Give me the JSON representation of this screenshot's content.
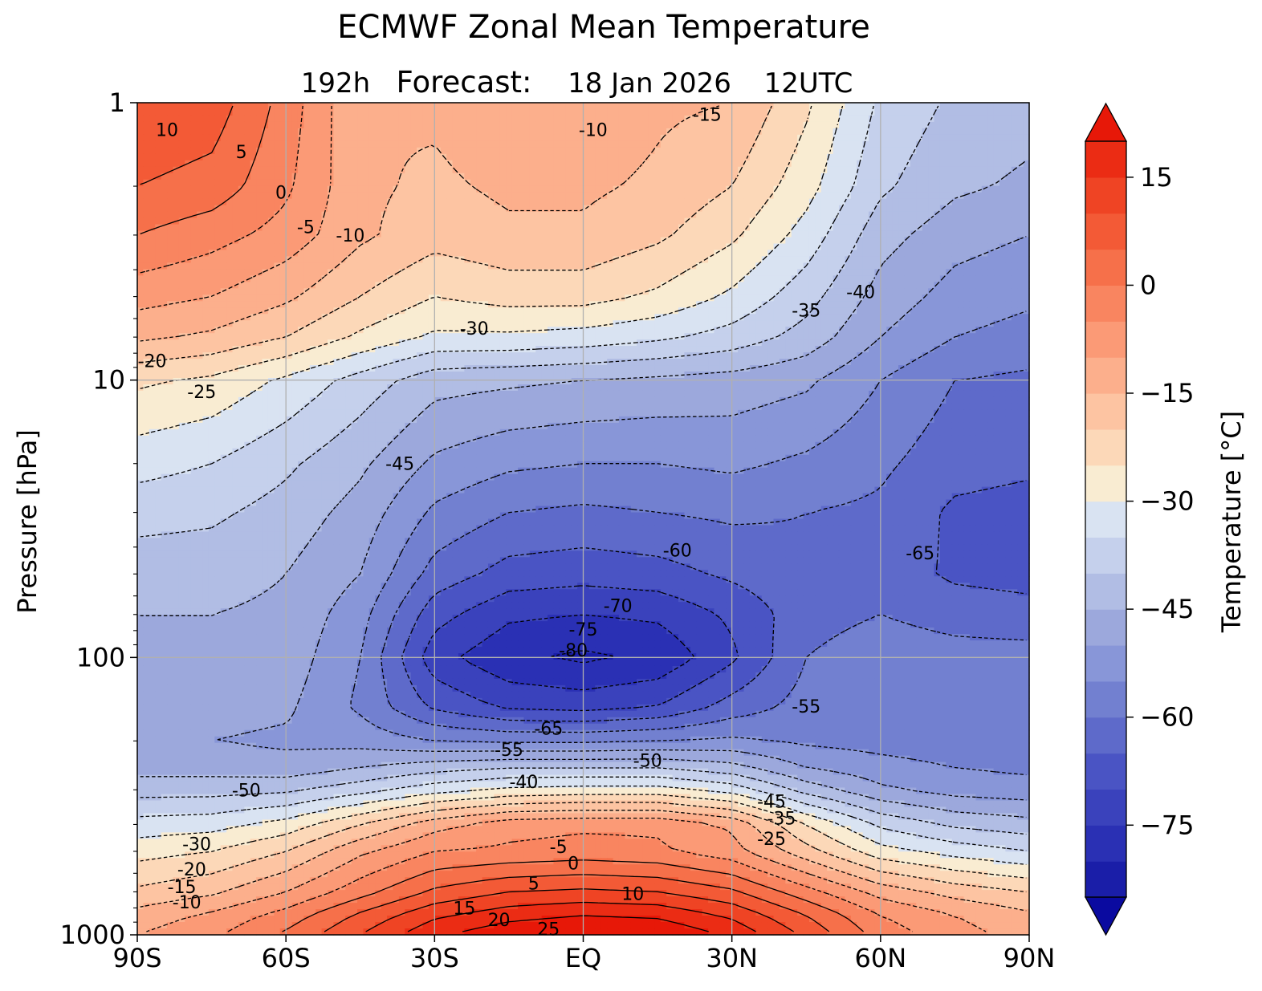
{
  "chart_data": {
    "type": "contour",
    "title": "ECMWF Zonal Mean Temperature",
    "subtitle": {
      "lead": "192h",
      "label": "Forecast:",
      "date": "18 Jan 2026",
      "time": "12UTC"
    },
    "x": {
      "label": "",
      "range": [
        -90,
        90
      ],
      "ticks": [
        -90,
        -60,
        -30,
        0,
        30,
        60,
        90
      ],
      "tick_labels": [
        "90S",
        "60S",
        "30S",
        "EQ",
        "30N",
        "60N",
        "90N"
      ],
      "grid": true
    },
    "y": {
      "label": "Pressure [hPa]",
      "scale": "log",
      "inverted": true,
      "range": [
        1000,
        1
      ],
      "ticks": [
        1,
        10,
        100,
        1000
      ],
      "tick_labels": [
        "1",
        "10",
        "100",
        "1000"
      ],
      "grid": true
    },
    "colorbar": {
      "label": "Temperature [°C]",
      "min": -85,
      "max": 20,
      "step": 5,
      "extend": "both",
      "ticks": [
        15,
        0,
        -15,
        -30,
        -45,
        -60,
        -75
      ],
      "tick_labels": [
        "15",
        "0",
        "−15",
        "−30",
        "−45",
        "−60",
        "−75"
      ],
      "colors": [
        "#0a0aa0",
        "#1a1ea8",
        "#2a30b4",
        "#3a42bc",
        "#4a54c4",
        "#5e6aca",
        "#7280d0",
        "#8896d8",
        "#9ca8dc",
        "#b1bde4",
        "#c5d0ec",
        "#d9e3f2",
        "#f9ecd2",
        "#fcd8b8",
        "#fdc4a2",
        "#fcaf8c",
        "#fb9a76",
        "#f98560",
        "#f6704a",
        "#f35a36",
        "#ef4424",
        "#eb2c14",
        "#e71808"
      ]
    },
    "field_grid": {
      "lat": [
        -90,
        -75,
        -60,
        -45,
        -30,
        -15,
        0,
        15,
        30,
        45,
        60,
        75,
        90
      ],
      "pressure": [
        1,
        2,
        3,
        5,
        7,
        10,
        20,
        30,
        50,
        70,
        100,
        150,
        200,
        250,
        300,
        400,
        500,
        700,
        850,
        1000
      ],
      "temperature": [
        [
          10,
          8,
          -2,
          -15,
          -14,
          -11,
          -11,
          -14,
          -15,
          -24,
          -36,
          -41,
          -43
        ],
        [
          5,
          3,
          -4,
          -14,
          -16,
          -14,
          -14,
          -16,
          -20,
          -28,
          -39,
          -44,
          -46
        ],
        [
          0,
          -3,
          -7,
          -14,
          -18,
          -16,
          -16,
          -19,
          -24,
          -32,
          -43,
          -48,
          -50
        ],
        [
          -8,
          -10,
          -14,
          -20,
          -25,
          -23,
          -23,
          -26,
          -31,
          -38,
          -47,
          -52,
          -54
        ],
        [
          -14,
          -16,
          -20,
          -26,
          -31,
          -31,
          -32,
          -34,
          -37,
          -42,
          -50,
          -55,
          -57
        ],
        [
          -24,
          -26,
          -31,
          -37,
          -43,
          -44,
          -45,
          -46,
          -47,
          -49,
          -55,
          -60,
          -61
        ],
        [
          -33,
          -35,
          -39,
          -44,
          -51,
          -54,
          -55,
          -55,
          -54,
          -56,
          -59,
          -63,
          -64
        ],
        [
          -38,
          -39,
          -42,
          -47,
          -56,
          -60,
          -61,
          -60,
          -59,
          -60,
          -61,
          -66,
          -67
        ],
        [
          -43,
          -43,
          -45,
          -50,
          -62,
          -67,
          -68,
          -67,
          -64,
          -61,
          -62,
          -66,
          -67
        ],
        [
          -45,
          -45,
          -46,
          -53,
          -68,
          -74,
          -75,
          -74,
          -69,
          -62,
          -60,
          -62,
          -63
        ],
        [
          -46,
          -46,
          -47,
          -55,
          -73,
          -79,
          -81,
          -79,
          -71,
          -60,
          -57,
          -58,
          -58
        ],
        [
          -48,
          -48,
          -49,
          -56,
          -66,
          -71,
          -72,
          -70,
          -63,
          -58,
          -56,
          -57,
          -57
        ],
        [
          -50,
          -50,
          -51,
          -52,
          -55,
          -56,
          -56,
          -55,
          -54,
          -56,
          -57,
          -58,
          -58
        ],
        [
          -47,
          -47,
          -48,
          -45,
          -42,
          -40,
          -40,
          -40,
          -43,
          -50,
          -53,
          -55,
          -56
        ],
        [
          -42,
          -42,
          -41,
          -37,
          -32,
          -29,
          -28,
          -28,
          -32,
          -42,
          -49,
          -52,
          -53
        ],
        [
          -33,
          -32,
          -28,
          -20,
          -12,
          -7,
          -6,
          -6,
          -11,
          -25,
          -36,
          -41,
          -43
        ],
        [
          -27,
          -25,
          -20,
          -11,
          -5,
          -4,
          -3,
          -4,
          -8,
          -18,
          -28,
          -32,
          -35
        ],
        [
          -19,
          -16,
          -10,
          -2,
          6,
          10,
          11,
          10,
          6,
          -3,
          -12,
          -17,
          -20
        ],
        [
          -13,
          -9,
          -3,
          6,
          14,
          18,
          20,
          19,
          14,
          5,
          -5,
          -10,
          -14
        ],
        [
          -10,
          -6,
          1,
          10,
          19,
          24,
          26,
          25,
          19,
          9,
          -2,
          -8,
          -12
        ]
      ]
    },
    "contour_labels": [
      {
        "text": "10",
        "lat": -84,
        "p": 1.25
      },
      {
        "text": "5",
        "lat": -69,
        "p": 1.5
      },
      {
        "text": "0",
        "lat": -61,
        "p": 2.1
      },
      {
        "text": "-5",
        "lat": -56,
        "p": 2.8
      },
      {
        "text": "-10",
        "lat": -47,
        "p": 3.0
      },
      {
        "text": "-10",
        "lat": 2,
        "p": 1.25
      },
      {
        "text": "-15",
        "lat": 25,
        "p": 1.1
      },
      {
        "text": "-30",
        "lat": -22,
        "p": 6.5
      },
      {
        "text": "-35",
        "lat": 45,
        "p": 5.6
      },
      {
        "text": "-40",
        "lat": 56,
        "p": 4.8
      },
      {
        "text": "-20",
        "lat": -87,
        "p": 8.5
      },
      {
        "text": "-25",
        "lat": -77,
        "p": 11
      },
      {
        "text": "-45",
        "lat": -37,
        "p": 20
      },
      {
        "text": "-60",
        "lat": 19,
        "p": 41
      },
      {
        "text": "-65",
        "lat": 68,
        "p": 42
      },
      {
        "text": "-70",
        "lat": 7,
        "p": 65
      },
      {
        "text": "-75",
        "lat": 0,
        "p": 79
      },
      {
        "text": "-80",
        "lat": -2,
        "p": 94
      },
      {
        "text": "-55",
        "lat": 45,
        "p": 150
      },
      {
        "text": "-65",
        "lat": -7,
        "p": 180
      },
      {
        "text": "-55",
        "lat": -15,
        "p": 215
      },
      {
        "text": "-50",
        "lat": 13,
        "p": 235
      },
      {
        "text": "-40",
        "lat": -12,
        "p": 280
      },
      {
        "text": "-50",
        "lat": -68,
        "p": 300
      },
      {
        "text": "-45",
        "lat": 38,
        "p": 330
      },
      {
        "text": "-35",
        "lat": 40,
        "p": 380
      },
      {
        "text": "-25",
        "lat": 38,
        "p": 450
      },
      {
        "text": "-30",
        "lat": -78,
        "p": 470
      },
      {
        "text": "-5",
        "lat": -5,
        "p": 480
      },
      {
        "text": "0",
        "lat": -2,
        "p": 550
      },
      {
        "text": "-20",
        "lat": -79,
        "p": 580
      },
      {
        "text": "5",
        "lat": -10,
        "p": 650
      },
      {
        "text": "-15",
        "lat": -81,
        "p": 670
      },
      {
        "text": "-10",
        "lat": -80,
        "p": 760
      },
      {
        "text": "10",
        "lat": 10,
        "p": 710
      },
      {
        "text": "15",
        "lat": -24,
        "p": 800
      },
      {
        "text": "20",
        "lat": -17,
        "p": 880
      },
      {
        "text": "25",
        "lat": -7,
        "p": 950
      }
    ]
  }
}
